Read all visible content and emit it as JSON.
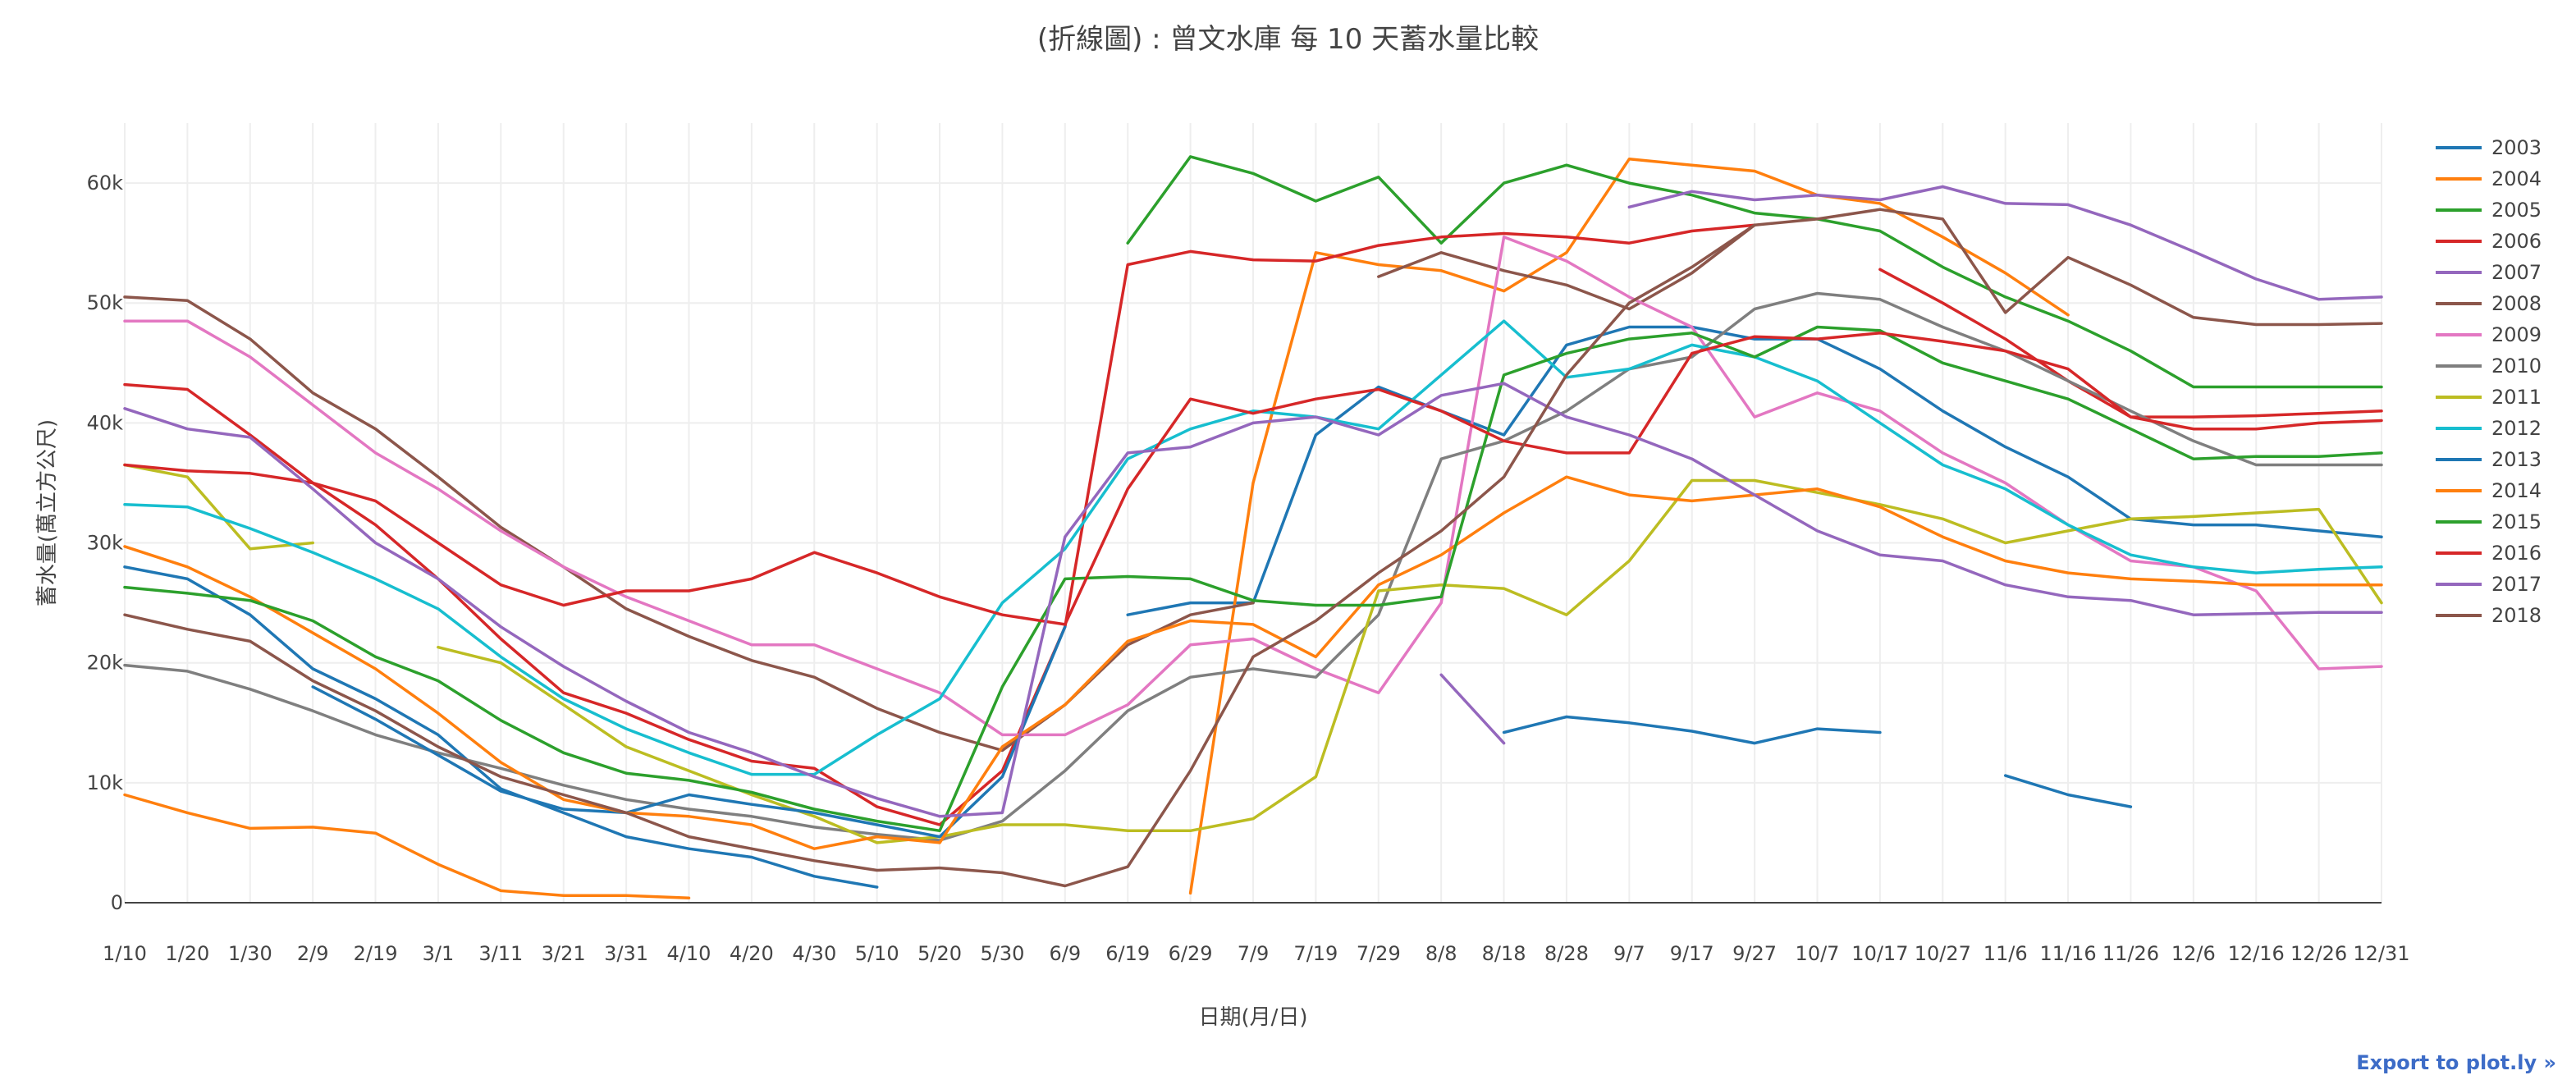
{
  "chart_data": {
    "type": "line",
    "title": "(折線圖) : 曾文水庫 每 10 天蓄水量比較",
    "xlabel": "日期(月/日)",
    "ylabel": "蓄水量(萬立方公尺)",
    "categories": [
      "1/10",
      "1/20",
      "1/30",
      "2/9",
      "2/19",
      "3/1",
      "3/11",
      "3/21",
      "3/31",
      "4/10",
      "4/20",
      "4/30",
      "5/10",
      "5/20",
      "5/30",
      "6/9",
      "6/19",
      "6/29",
      "7/9",
      "7/19",
      "7/29",
      "8/8",
      "8/18",
      "8/28",
      "9/7",
      "9/17",
      "9/27",
      "10/7",
      "10/17",
      "10/27",
      "11/6",
      "11/16",
      "11/26",
      "12/6",
      "12/16",
      "12/26",
      "12/31"
    ],
    "ylim": [
      0,
      65000
    ],
    "yticks": [
      0,
      10000,
      20000,
      30000,
      40000,
      50000,
      60000
    ],
    "ytick_labels": [
      "0",
      "10k",
      "20k",
      "30k",
      "40k",
      "50k",
      "60k"
    ],
    "grid": true,
    "legend_position": "right",
    "series": [
      {
        "name": "2003",
        "color": "#1f77b4",
        "values": [
          28000,
          27000,
          24000,
          19500,
          17000,
          14000,
          9500,
          7500,
          5500,
          4500,
          3800,
          2200,
          1300,
          null,
          null,
          null,
          24000,
          25000,
          25000,
          39000,
          43000,
          41000,
          39000,
          46500,
          48000,
          48000,
          47000,
          47000,
          44500,
          41000,
          38000,
          35500,
          32000,
          31500,
          31500,
          31000,
          30500
        ]
      },
      {
        "name": "2004",
        "color": "#ff7f0e",
        "values": [
          9000,
          7500,
          6200,
          6300,
          5800,
          3200,
          1000,
          600,
          600,
          400,
          null,
          null,
          null,
          null,
          null,
          null,
          null,
          800,
          35000,
          54200,
          53200,
          52700,
          51000,
          54200,
          62000,
          61500,
          61000,
          59000,
          58300,
          55500,
          52500,
          49000,
          null,
          null,
          null,
          null,
          null
        ]
      },
      {
        "name": "2005",
        "color": "#2ca02c",
        "values": [
          null,
          null,
          null,
          null,
          null,
          null,
          null,
          null,
          null,
          null,
          null,
          null,
          null,
          null,
          null,
          null,
          55000,
          62200,
          60800,
          58500,
          60500,
          55000,
          60000,
          61500,
          60000,
          59000,
          57500,
          57000,
          56000,
          53000,
          50500,
          48500,
          46000,
          43000,
          43000,
          43000,
          43000
        ]
      },
      {
        "name": "2006",
        "color": "#d62728",
        "values": [
          43200,
          42800,
          39000,
          35000,
          31500,
          27000,
          22000,
          17500,
          15800,
          13600,
          11800,
          11200,
          8000,
          6500,
          11000,
          23000,
          53200,
          54300,
          53600,
          53500,
          54800,
          55500,
          55800,
          55500,
          55000,
          56000,
          56500,
          null,
          52800,
          50000,
          47000,
          43500,
          40500,
          40500,
          40600,
          40800,
          41000
        ]
      },
      {
        "name": "2007",
        "color": "#9467bd",
        "values": [
          null,
          null,
          null,
          null,
          null,
          null,
          null,
          null,
          null,
          null,
          null,
          null,
          null,
          null,
          null,
          null,
          null,
          null,
          null,
          null,
          null,
          19000,
          13300,
          null,
          58000,
          59300,
          58600,
          59000,
          58600,
          59700,
          58300,
          58200,
          56500,
          54300,
          52000,
          50300,
          50500
        ]
      },
      {
        "name": "2008",
        "color": "#8c564b",
        "values": [
          50500,
          50200,
          47000,
          42500,
          39500,
          35500,
          31300,
          28000,
          24500,
          22200,
          20200,
          18800,
          16200,
          14200,
          12700,
          16500,
          21500,
          24000,
          25000,
          null,
          52200,
          54200,
          52700,
          51500,
          49500,
          52500,
          56500,
          57000,
          57800,
          57000,
          49200,
          53800,
          51500,
          48800,
          48200,
          48200,
          48300
        ]
      },
      {
        "name": "2009",
        "color": "#e377c2",
        "values": [
          48500,
          48500,
          45500,
          41500,
          37500,
          34500,
          31000,
          28000,
          25500,
          23500,
          21500,
          21500,
          19500,
          17500,
          14000,
          14000,
          16500,
          21500,
          22000,
          19500,
          17500,
          25000,
          55500,
          53500,
          50500,
          48000,
          40500,
          42500,
          41000,
          37500,
          35000,
          31500,
          28500,
          28000,
          26000,
          19500,
          19700
        ]
      },
      {
        "name": "2010",
        "color": "#7f7f7f",
        "values": [
          19800,
          19300,
          17800,
          16000,
          14000,
          12500,
          11200,
          9800,
          8600,
          7800,
          7200,
          6300,
          5700,
          5200,
          6800,
          11000,
          16000,
          18800,
          19500,
          18800,
          24000,
          37000,
          38500,
          41000,
          44500,
          45500,
          49500,
          50800,
          50300,
          48000,
          46000,
          43500,
          41000,
          38500,
          36500,
          36500,
          36500
        ]
      },
      {
        "name": "2011",
        "color": "#bcbd22",
        "values": [
          36500,
          35500,
          29500,
          30000,
          null,
          21300,
          20000,
          16500,
          13000,
          11000,
          9000,
          7200,
          5000,
          5500,
          6500,
          6500,
          6000,
          6000,
          7000,
          10500,
          26000,
          26500,
          26200,
          24000,
          28500,
          35200,
          35200,
          34200,
          33200,
          32000,
          30000,
          31000,
          32000,
          32200,
          32500,
          32800,
          25000
        ]
      },
      {
        "name": "2012",
        "color": "#17becf",
        "values": [
          33200,
          33000,
          31200,
          29200,
          27000,
          24500,
          20500,
          17000,
          14500,
          12500,
          10700,
          10700,
          14000,
          17000,
          25000,
          29500,
          37000,
          39500,
          41000,
          40500,
          39500,
          44000,
          48500,
          43800,
          44500,
          46500,
          45500,
          43500,
          40000,
          36500,
          34500,
          31500,
          29000,
          28000,
          27500,
          27800,
          28000
        ]
      },
      {
        "name": "2013",
        "color": "#1f77b4",
        "values": [
          null,
          null,
          null,
          18000,
          15300,
          12300,
          9300,
          7800,
          7500,
          9000,
          8200,
          7500,
          6500,
          5500,
          10500,
          23000,
          null,
          null,
          null,
          null,
          null,
          null,
          14200,
          15500,
          15000,
          14300,
          13300,
          14500,
          14200,
          null,
          10600,
          9000,
          8000,
          null,
          null,
          null,
          null
        ]
      },
      {
        "name": "2014",
        "color": "#ff7f0e",
        "values": [
          29700,
          28000,
          25500,
          22500,
          19500,
          15800,
          11700,
          8600,
          7500,
          7200,
          6500,
          4500,
          5500,
          5000,
          13000,
          16500,
          21800,
          23500,
          23200,
          20500,
          26500,
          29000,
          32500,
          35500,
          34000,
          33500,
          34000,
          34500,
          33000,
          30500,
          28500,
          27500,
          27000,
          26800,
          26500,
          26500,
          26500
        ]
      },
      {
        "name": "2015",
        "color": "#2ca02c",
        "values": [
          26300,
          25800,
          25200,
          23500,
          20500,
          18500,
          15200,
          12500,
          10800,
          10200,
          9200,
          7800,
          6800,
          6000,
          18000,
          27000,
          27200,
          27000,
          25200,
          24800,
          24800,
          25500,
          44000,
          45800,
          47000,
          47500,
          45500,
          48000,
          47700,
          45000,
          43500,
          42000,
          39500,
          37000,
          37200,
          37200,
          37500
        ]
      },
      {
        "name": "2016",
        "color": "#d62728",
        "values": [
          36500,
          36000,
          35800,
          35000,
          33500,
          30000,
          26500,
          24800,
          26000,
          26000,
          27000,
          29200,
          27500,
          25500,
          24000,
          23200,
          34500,
          42000,
          40800,
          42000,
          42800,
          41000,
          38500,
          37500,
          37500,
          45800,
          47200,
          47000,
          47500,
          46800,
          46000,
          44500,
          40500,
          39500,
          39500,
          40000,
          40200
        ]
      },
      {
        "name": "2017",
        "color": "#9467bd",
        "values": [
          41200,
          39500,
          38800,
          34500,
          30000,
          27000,
          23000,
          19700,
          16800,
          14200,
          12500,
          10500,
          8700,
          7200,
          7500,
          30500,
          37500,
          38000,
          40000,
          40500,
          39000,
          42300,
          43300,
          40500,
          39000,
          37000,
          34000,
          31000,
          29000,
          28500,
          26500,
          25500,
          25200,
          24000,
          24100,
          24200,
          24200
        ]
      },
      {
        "name": "2018",
        "color": "#8c564b",
        "values": [
          24000,
          22800,
          21800,
          18500,
          16000,
          13000,
          10500,
          9000,
          7500,
          5500,
          4500,
          3500,
          2700,
          2900,
          2500,
          1400,
          3000,
          11000,
          20500,
          23500,
          27500,
          31000,
          35500,
          44000,
          50000,
          53000,
          56500,
          null,
          null,
          null,
          null,
          null,
          null,
          null,
          null,
          null,
          null
        ]
      }
    ]
  },
  "legend_title": "",
  "export_label": "Export to plot.ly »"
}
